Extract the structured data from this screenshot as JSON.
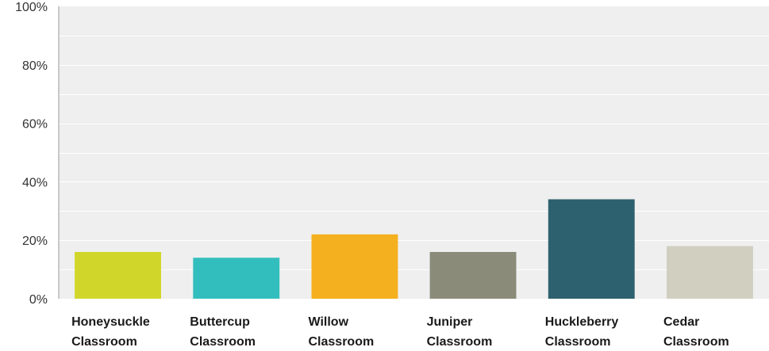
{
  "chart_data": {
    "type": "bar",
    "categories": [
      [
        "Honeysuckle",
        "Classroom"
      ],
      [
        "Buttercup",
        "Classroom"
      ],
      [
        "Willow",
        "Classroom"
      ],
      [
        "Juniper",
        "Classroom"
      ],
      [
        "Huckleberry",
        "Classroom"
      ],
      [
        "Cedar",
        "Classroom"
      ]
    ],
    "values": [
      16,
      14,
      22,
      16,
      34,
      18
    ],
    "colors": [
      "#d0d72a",
      "#33bebe",
      "#f5b01f",
      "#8b8b79",
      "#2e616f",
      "#d0cfc0"
    ],
    "ylim": [
      0,
      100
    ],
    "yticks": [
      "0%",
      "20%",
      "40%",
      "60%",
      "80%",
      "100%"
    ],
    "grid": true,
    "background": "#efefef",
    "gridline_color": "#ffffff"
  }
}
